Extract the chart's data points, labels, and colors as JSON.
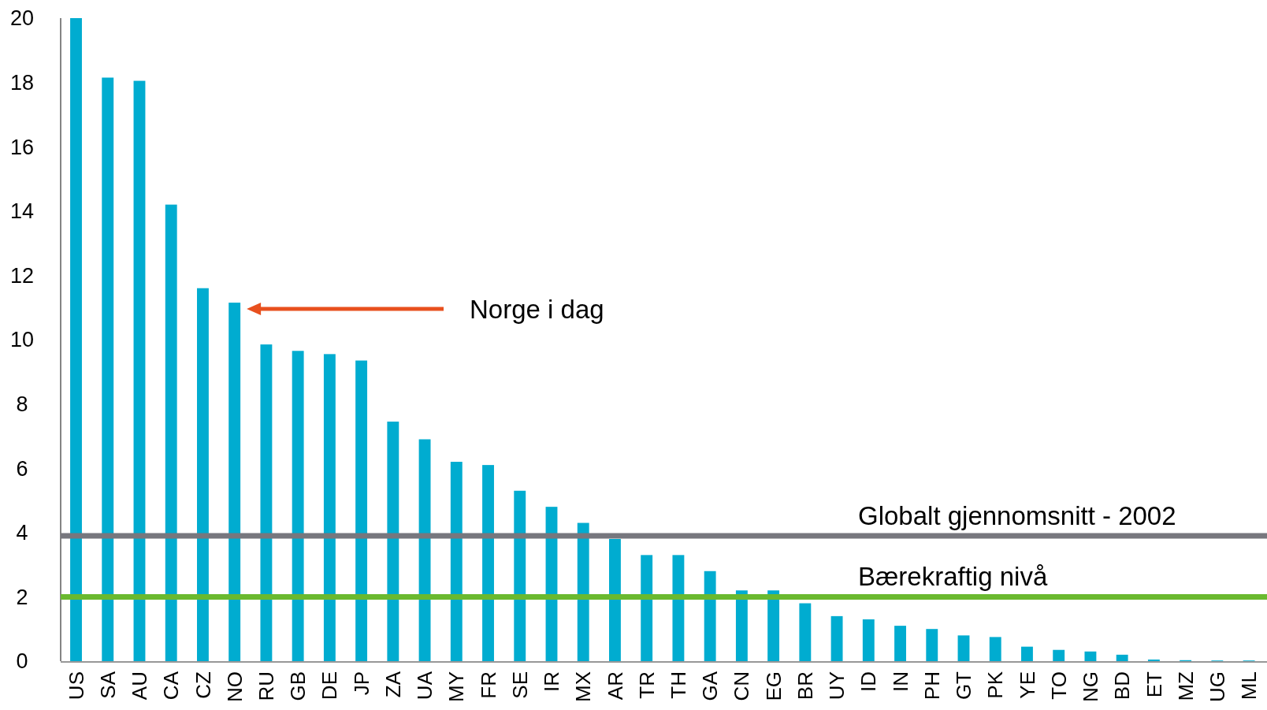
{
  "chart_data": {
    "type": "bar",
    "categories": [
      "US",
      "SA",
      "AU",
      "CA",
      "CZ",
      "NO",
      "RU",
      "GB",
      "DE",
      "JP",
      "ZA",
      "UA",
      "MY",
      "FR",
      "SE",
      "IR",
      "MX",
      "AR",
      "TR",
      "TH",
      "GA",
      "CN",
      "EG",
      "BR",
      "UY",
      "ID",
      "IN",
      "PH",
      "GT",
      "PK",
      "YE",
      "TO",
      "NG",
      "BD",
      "ET",
      "MZ",
      "UG",
      "ML"
    ],
    "values": [
      20,
      18.15,
      18.05,
      14.2,
      11.6,
      11.15,
      9.85,
      9.65,
      9.55,
      9.35,
      7.45,
      6.9,
      6.2,
      6.1,
      5.3,
      4.8,
      4.3,
      3.8,
      3.3,
      3.3,
      2.8,
      2.2,
      2.2,
      1.8,
      1.4,
      1.3,
      1.1,
      1.0,
      0.8,
      0.75,
      0.45,
      0.35,
      0.3,
      0.2,
      0.05,
      0.03,
      0.02,
      0.02
    ],
    "color": "#00acd0",
    "ylim": [
      0,
      20
    ],
    "yticks": [
      0,
      2,
      4,
      6,
      8,
      10,
      12,
      14,
      16,
      18,
      20
    ],
    "grid": false,
    "ref_lines": [
      {
        "axis": "y",
        "value": 3.9,
        "label": "Globalt gjennomsnitt - 2002",
        "color": "#77777e"
      },
      {
        "axis": "y",
        "value": 2.0,
        "label": "Bærekraftig nivå",
        "color": "#6ab92f"
      }
    ],
    "annotations": [
      "Norge i dag"
    ]
  }
}
